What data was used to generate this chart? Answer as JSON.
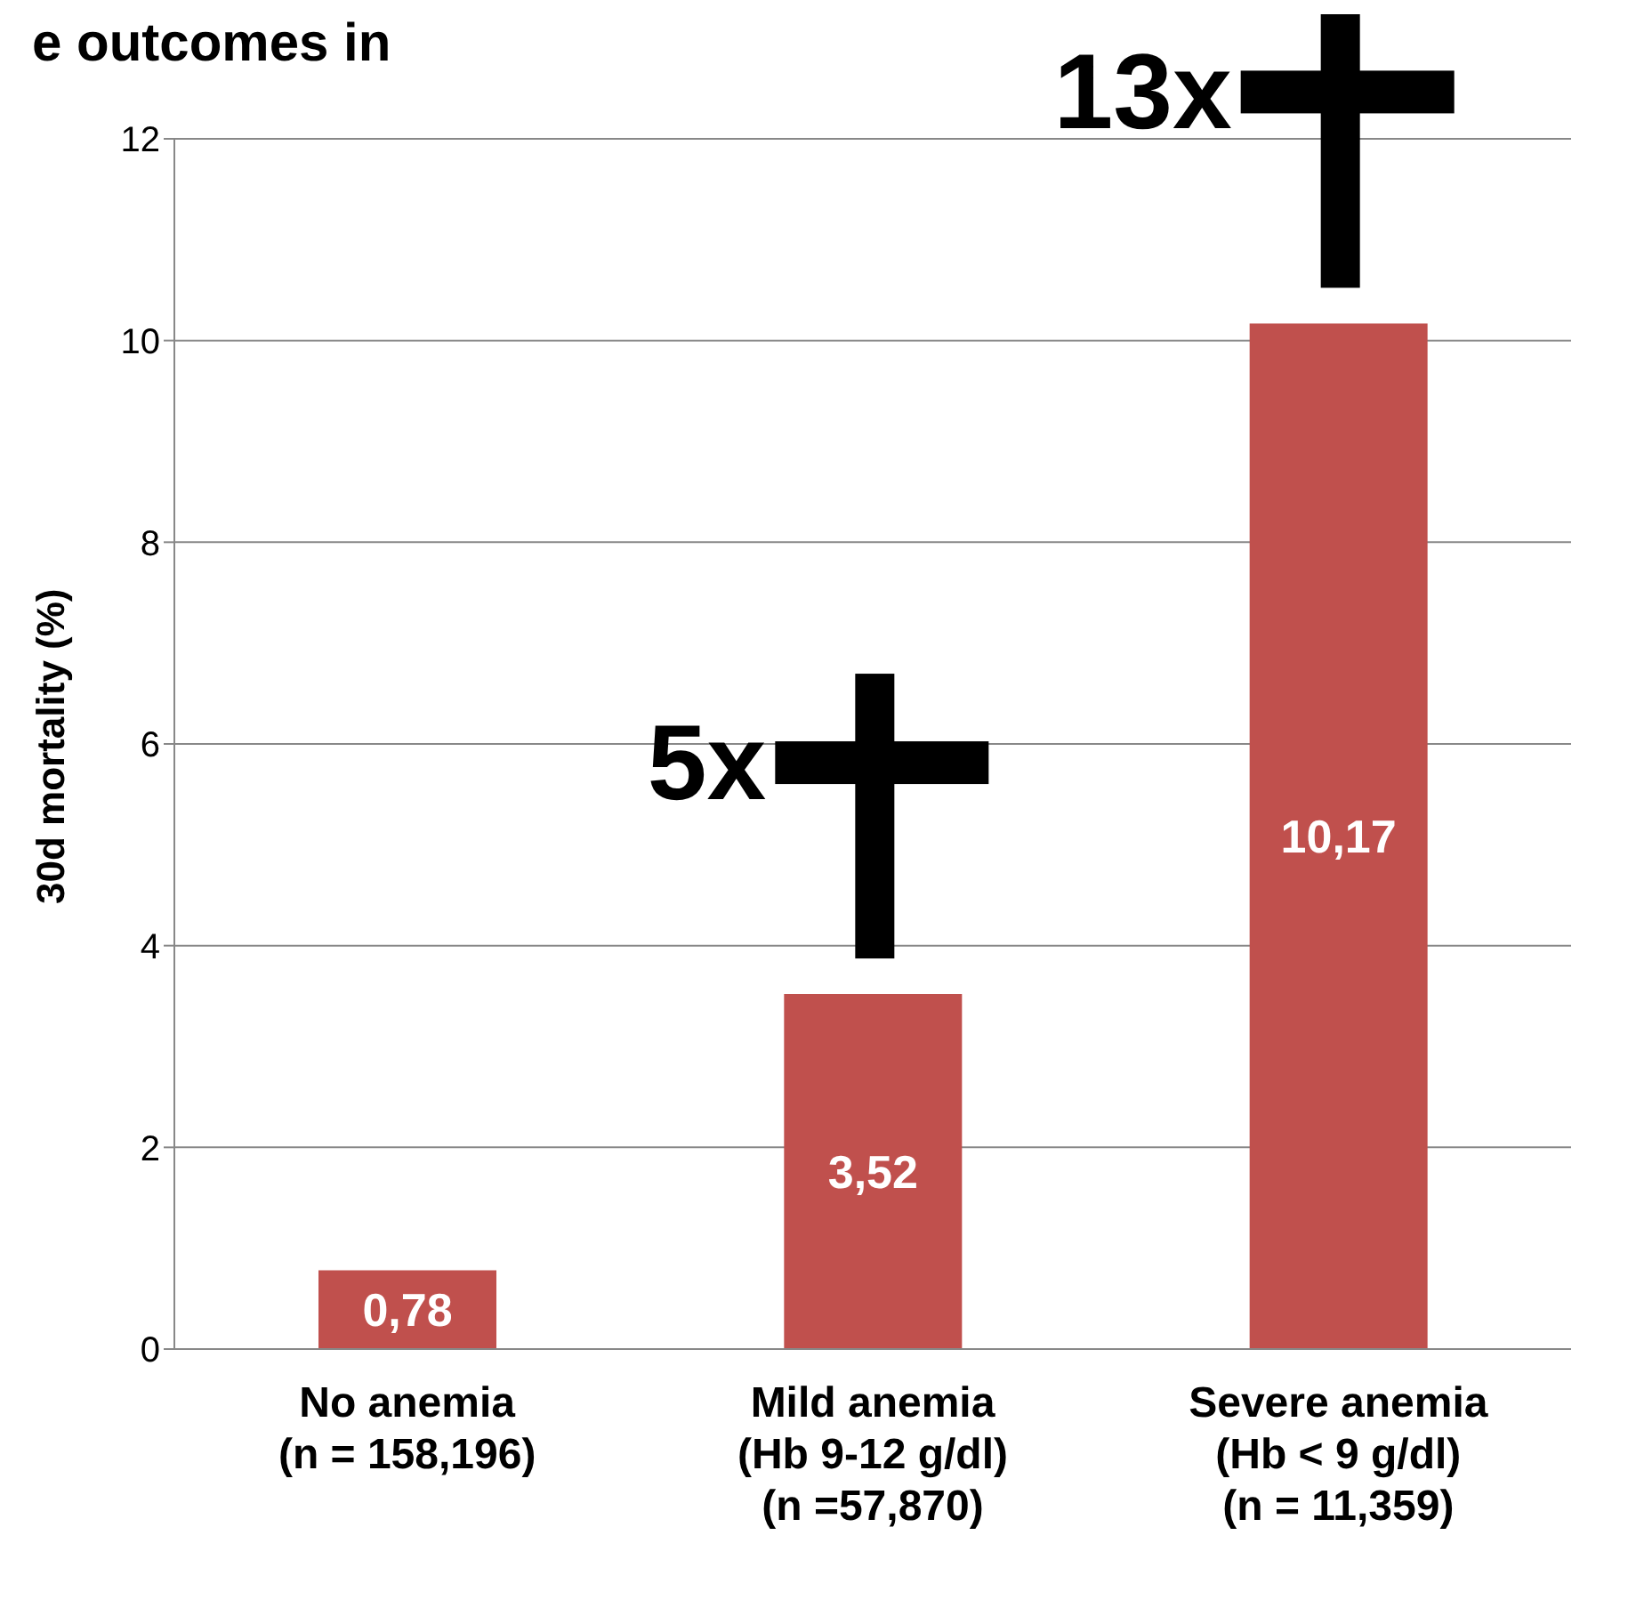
{
  "chart_data": {
    "type": "bar",
    "title": "e outcomes in",
    "categories": [
      "No anemia\n(n = 158,196)",
      "Mild anemia\n(Hb 9-12 g/dl)\n(n =57,870)",
      "Severe anemia\n(Hb < 9 g/dl)\n(n = 11,359)"
    ],
    "values": [
      0.78,
      3.52,
      10.17
    ],
    "color": "#c0504d",
    "value_labels": [
      "0,78",
      "3,52",
      "10,17"
    ],
    "ylabel": "30d mortality (%)",
    "ylim": [
      0,
      12
    ],
    "yticks": [
      0,
      2,
      4,
      6,
      8,
      10,
      12
    ],
    "grid": "y",
    "annotations": [
      "5x",
      "13x"
    ]
  }
}
